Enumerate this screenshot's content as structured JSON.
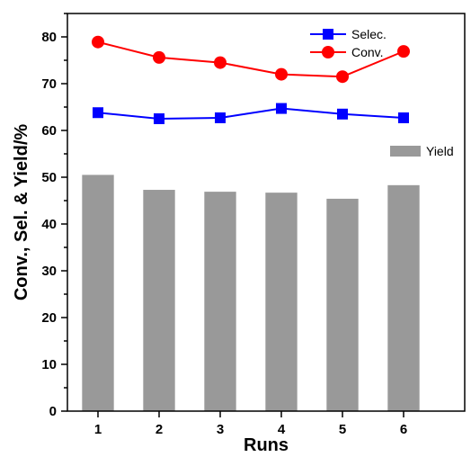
{
  "chart_data": {
    "type": "bar",
    "categories": [
      "1",
      "2",
      "3",
      "4",
      "5",
      "6"
    ],
    "xlabel": "Runs",
    "ylabel": "Conv., Sel. & Yield/%",
    "ylim": [
      0,
      85
    ],
    "yticks": [
      "0",
      "10",
      "20",
      "30",
      "40",
      "50",
      "60",
      "70",
      "80"
    ],
    "bar_series": {
      "name": "Yield",
      "color": "#999999",
      "values": [
        50.5,
        47.3,
        46.9,
        46.7,
        45.4,
        48.3
      ]
    },
    "line_series": [
      {
        "name": "Selec.",
        "color": "#0000ff",
        "marker": "square",
        "values": [
          63.8,
          62.5,
          62.7,
          64.7,
          63.5,
          62.7
        ]
      },
      {
        "name": "Conv.",
        "color": "#ff0000",
        "marker": "circle",
        "values": [
          78.9,
          75.6,
          74.5,
          72.0,
          71.5,
          76.9
        ]
      }
    ],
    "legend_placement": "top-right",
    "grid": false
  }
}
